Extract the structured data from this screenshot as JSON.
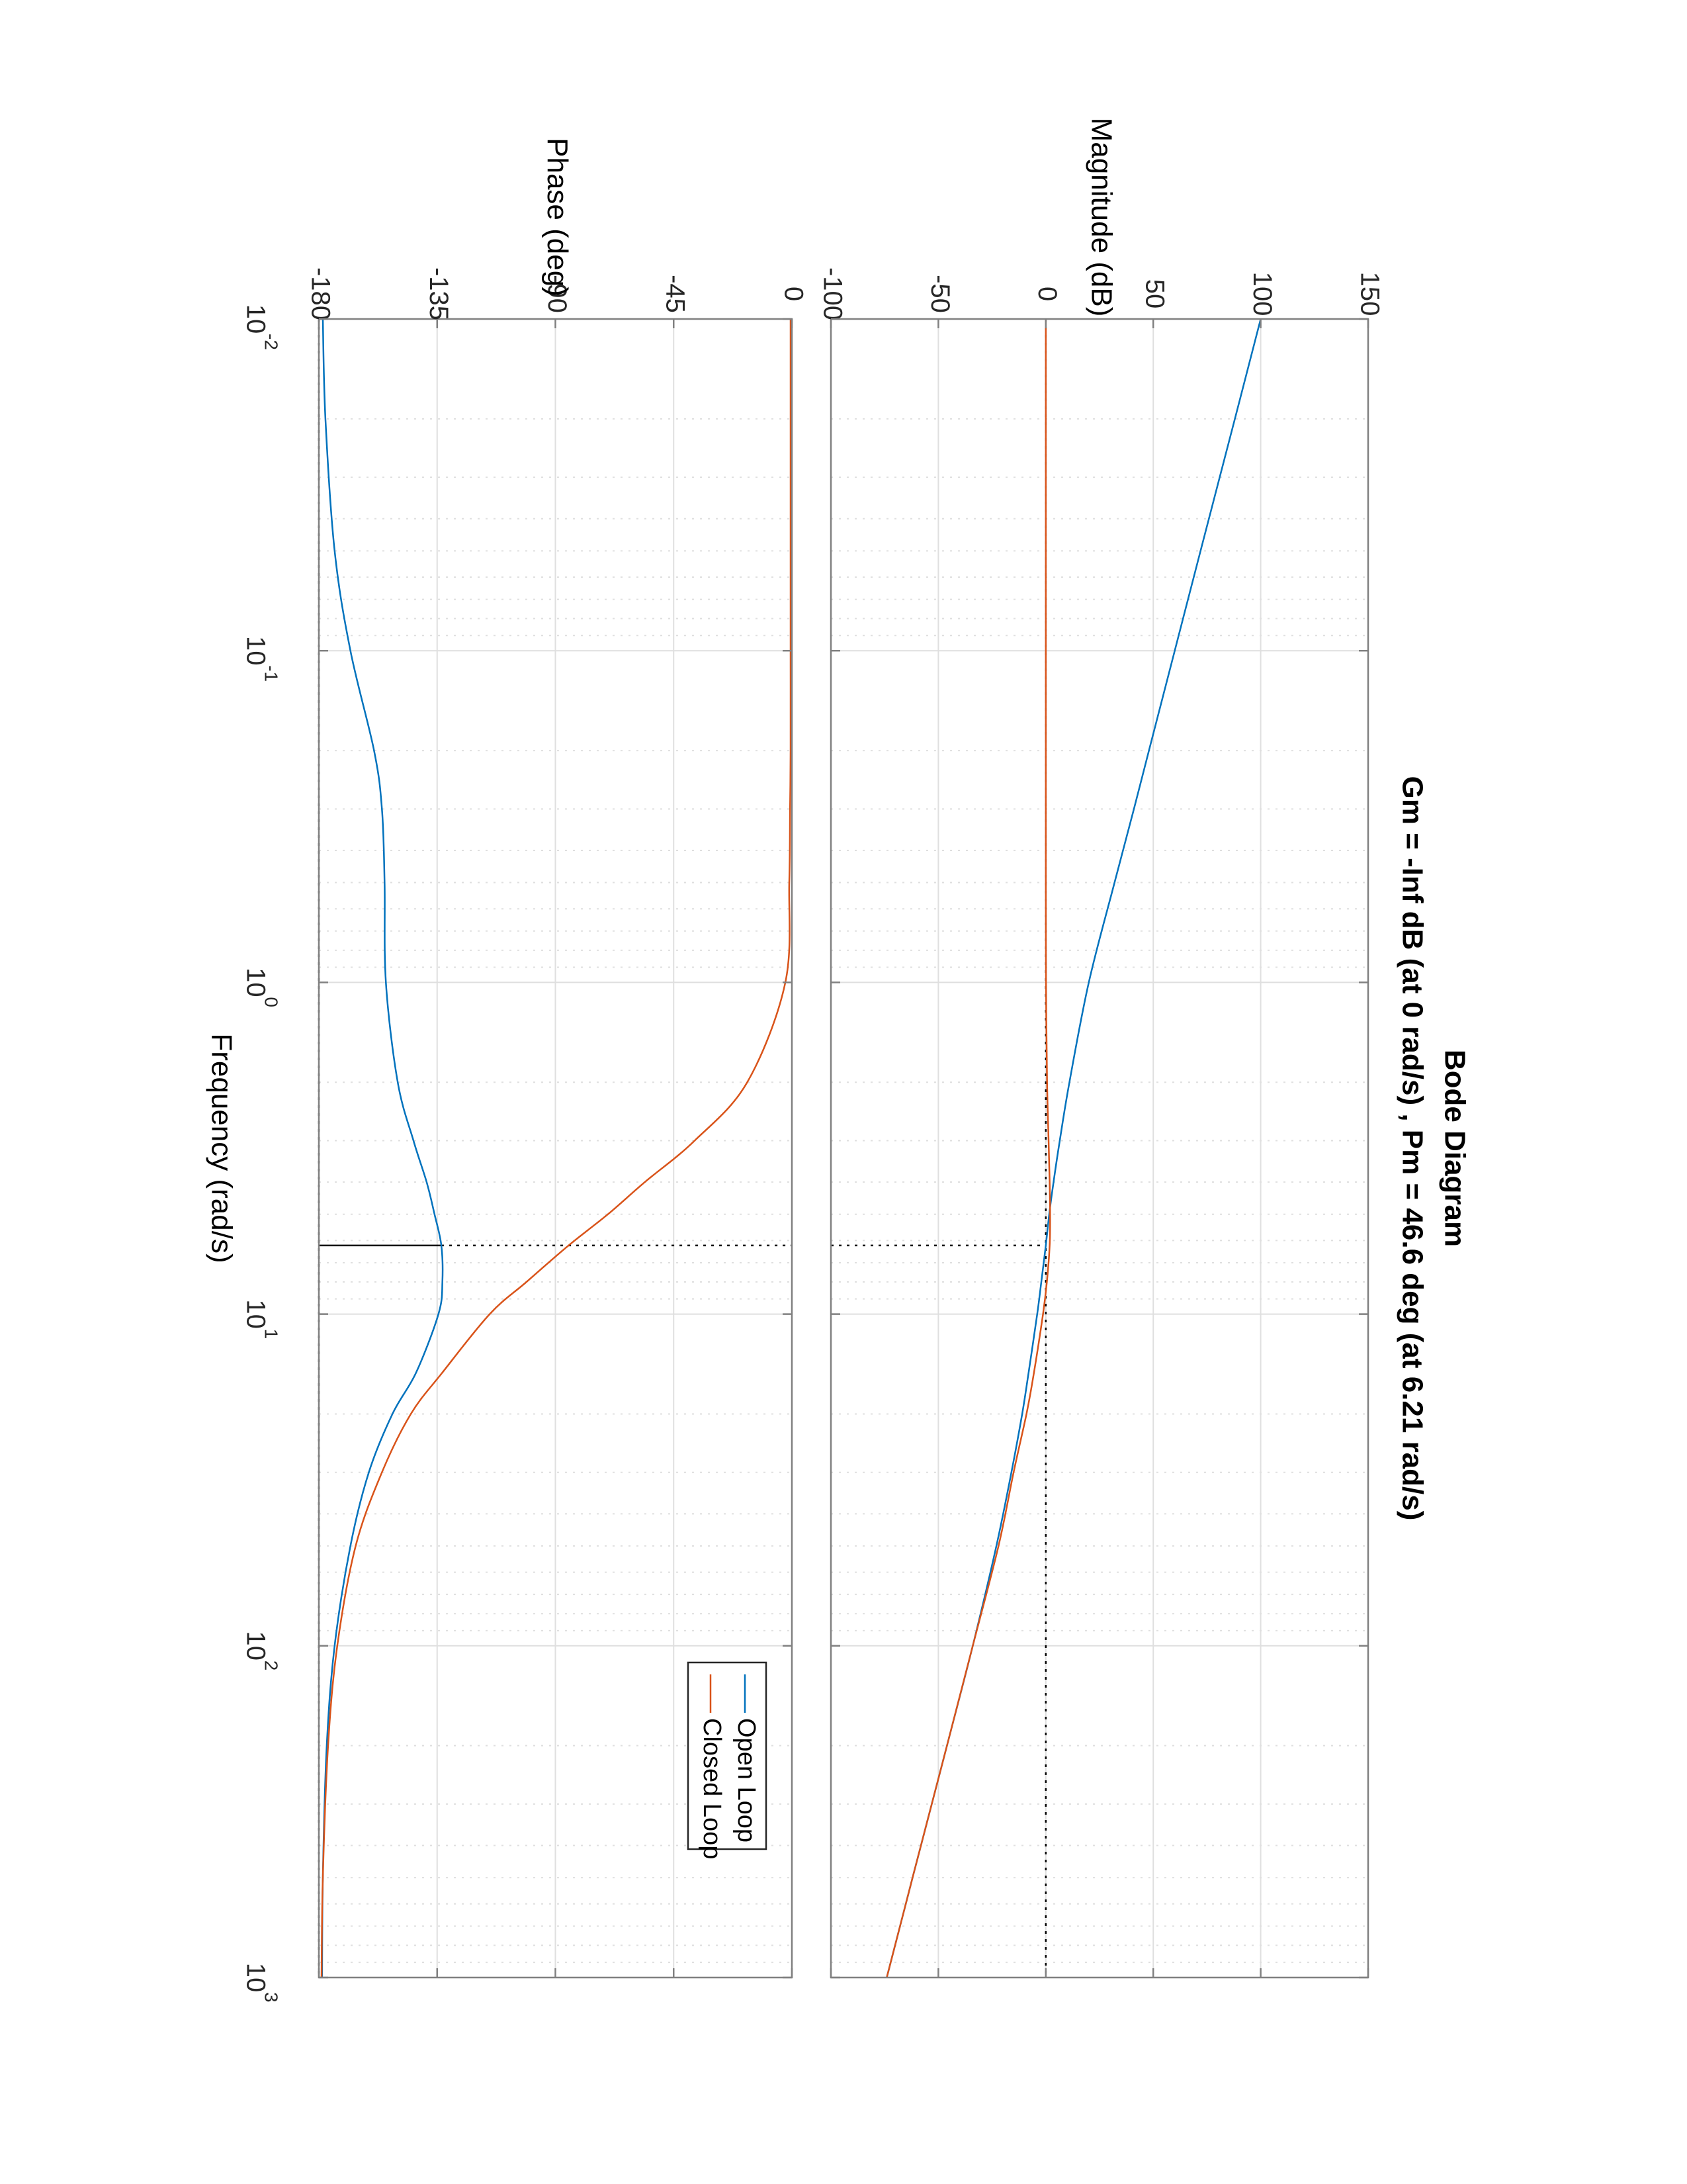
{
  "chart_data": {
    "type": "line",
    "title": "Bode Diagram",
    "subtitle": "Gm = -Inf dB (at 0 rad/s) ,  Pm = 46.6 deg (at 6.21 rad/s)",
    "xlabel": "Frequency  (rad/s)",
    "x_scale": "log",
    "xlim": [
      0.01,
      1000
    ],
    "x_ticks": [
      0.01,
      0.1,
      1,
      10,
      100,
      1000
    ],
    "x_tick_labels": [
      {
        "base": "10",
        "exp": "-2"
      },
      {
        "base": "10",
        "exp": "-1"
      },
      {
        "base": "10",
        "exp": "0"
      },
      {
        "base": "10",
        "exp": "1"
      },
      {
        "base": "10",
        "exp": "2"
      },
      {
        "base": "10",
        "exp": "3"
      }
    ],
    "grid": true,
    "orientation": "rotated 90 degrees clockwise",
    "legend": {
      "placement": "bottom-right of phase plot",
      "entries": [
        "Open Loop",
        "Closed Loop"
      ]
    },
    "colors": {
      "open_loop": "#0072BD",
      "closed_loop": "#D95319",
      "grid": "#dfdfdf",
      "axes": "#808080",
      "margin_marker": "#000000"
    },
    "x": [
      0.01,
      0.02,
      0.05,
      0.1,
      0.2,
      0.3,
      0.5,
      1,
      2,
      3,
      4,
      5,
      6.21,
      8,
      10,
      15,
      20,
      30,
      50,
      100,
      200,
      500,
      1000
    ],
    "panels": [
      {
        "name": "magnitude",
        "ylabel": "Magnitude (dB)",
        "ylim": [
          -100,
          150
        ],
        "y_ticks": [
          -100,
          -50,
          0,
          50,
          100,
          150
        ],
        "y_tick_labels": [
          "-100",
          "-50",
          "0",
          "50",
          "100",
          "150"
        ],
        "series": [
          {
            "name": "Open Loop",
            "values": [
              100,
              88,
              72,
              60,
              48,
              41,
              32,
              20,
              11,
              6.5,
              3.6,
              1.6,
              0,
              -2.1,
              -4,
              -8,
              -11,
              -16,
              -23,
              -34,
              -46,
              -62,
              -74
            ]
          },
          {
            "name": "Closed Loop",
            "values": [
              0,
              0,
              0,
              0,
              0,
              0,
              0,
              0.1,
              0.6,
              1.3,
              1.8,
              2.0,
              1.8,
              0.5,
              -1.3,
              -5.5,
              -9,
              -15,
              -22,
              -34,
              -46,
              -62,
              -74
            ]
          }
        ],
        "reference_line": {
          "y": 0
        },
        "marker": {
          "x": 6.21,
          "y": 0
        }
      },
      {
        "name": "phase",
        "ylabel": "Phase (deg)",
        "ylim": [
          -180,
          0
        ],
        "y_ticks": [
          -180,
          -135,
          -90,
          -45,
          0
        ],
        "y_tick_labels": [
          "-180",
          "-135",
          "-90",
          "-45",
          "0"
        ],
        "series": [
          {
            "name": "Open Loop",
            "values": [
              -178.5,
              -177.5,
              -174,
              -168,
              -159,
              -156,
              -155,
              -154.5,
              -150,
              -144,
              -139,
              -136,
              -133.4,
              -133,
              -134.5,
              -143,
              -152,
              -161,
              -168,
              -174,
              -177,
              -178.5,
              -178.8
            ]
          },
          {
            "name": "Closed Loop",
            "values": [
              -0.5,
              -0.5,
              -0.5,
              -0.5,
              -0.5,
              -0.7,
              -1,
              -2.5,
              -17,
              -37,
              -56,
              -70,
              -85,
              -101,
              -115,
              -133,
              -145,
              -156,
              -166,
              -173,
              -176.5,
              -178.5,
              -179
            ]
          }
        ],
        "reference_line": {
          "y": -180
        },
        "marker": {
          "x": 6.21,
          "y": -133.4
        }
      }
    ]
  }
}
